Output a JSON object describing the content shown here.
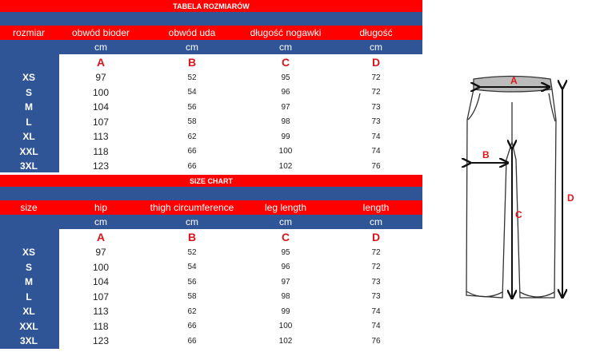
{
  "colors": {
    "header_red": "#fe0000",
    "band_blue": "#2f5597",
    "letter_red": "#d9161c"
  },
  "tables": [
    {
      "title": "TABELA ROZMIARÓW",
      "headers": [
        "rozmiar",
        "obwód bioder",
        "obwód uda",
        "długość nogawki",
        "długość"
      ],
      "units": [
        "",
        "cm",
        "cm",
        "cm",
        "cm"
      ],
      "letters": [
        "",
        "A",
        "B",
        "C",
        "D"
      ],
      "rows": [
        [
          "XS",
          "97",
          "52",
          "95",
          "72"
        ],
        [
          "S",
          "100",
          "54",
          "96",
          "72"
        ],
        [
          "M",
          "104",
          "56",
          "97",
          "73"
        ],
        [
          "L",
          "107",
          "58",
          "98",
          "73"
        ],
        [
          "XL",
          "113",
          "62",
          "99",
          "74"
        ],
        [
          "XXL",
          "118",
          "66",
          "100",
          "74"
        ],
        [
          "3XL",
          "123",
          "66",
          "102",
          "76"
        ]
      ]
    },
    {
      "title": "SIZE CHART",
      "headers": [
        "size",
        "hip",
        "thigh circumference",
        "leg length",
        "length"
      ],
      "units": [
        "",
        "cm",
        "cm",
        "cm",
        "cm"
      ],
      "letters": [
        "",
        "A",
        "B",
        "C",
        "D"
      ],
      "rows": [
        [
          "XS",
          "97",
          "52",
          "95",
          "72"
        ],
        [
          "S",
          "100",
          "54",
          "96",
          "72"
        ],
        [
          "M",
          "104",
          "56",
          "97",
          "73"
        ],
        [
          "L",
          "107",
          "58",
          "98",
          "73"
        ],
        [
          "XL",
          "113",
          "62",
          "99",
          "74"
        ],
        [
          "XXL",
          "118",
          "66",
          "100",
          "74"
        ],
        [
          "3XL",
          "123",
          "66",
          "102",
          "76"
        ]
      ]
    }
  ],
  "diagram": {
    "labels": [
      "A",
      "B",
      "C",
      "D"
    ],
    "icon": "trousers-measurement-diagram"
  }
}
